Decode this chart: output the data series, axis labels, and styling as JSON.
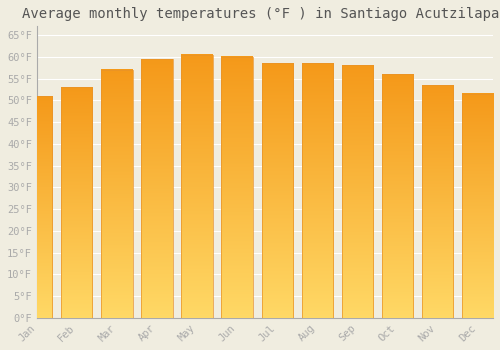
{
  "title": "Average monthly temperatures (°F ) in Santiago Acutzilapan",
  "months": [
    "Jan",
    "Feb",
    "Mar",
    "Apr",
    "May",
    "Jun",
    "Jul",
    "Aug",
    "Sep",
    "Oct",
    "Nov",
    "Dec"
  ],
  "values": [
    51,
    53,
    57,
    59.5,
    60.5,
    60,
    58.5,
    58.5,
    58,
    56,
    53.5,
    51.5
  ],
  "bar_color_top": "#F5A623",
  "bar_color_bottom": "#FFD966",
  "bar_edge_color": "#E8922A",
  "ylim": [
    0,
    67
  ],
  "yticks": [
    0,
    5,
    10,
    15,
    20,
    25,
    30,
    35,
    40,
    45,
    50,
    55,
    60,
    65
  ],
  "ytick_labels": [
    "0°F",
    "5°F",
    "10°F",
    "15°F",
    "20°F",
    "25°F",
    "30°F",
    "35°F",
    "40°F",
    "45°F",
    "50°F",
    "55°F",
    "60°F",
    "65°F"
  ],
  "background_color": "#f0ede0",
  "grid_color": "#ffffff",
  "title_fontsize": 10,
  "tick_fontsize": 7.5,
  "font_family": "monospace",
  "tick_color": "#aaaaaa",
  "title_color": "#555555"
}
